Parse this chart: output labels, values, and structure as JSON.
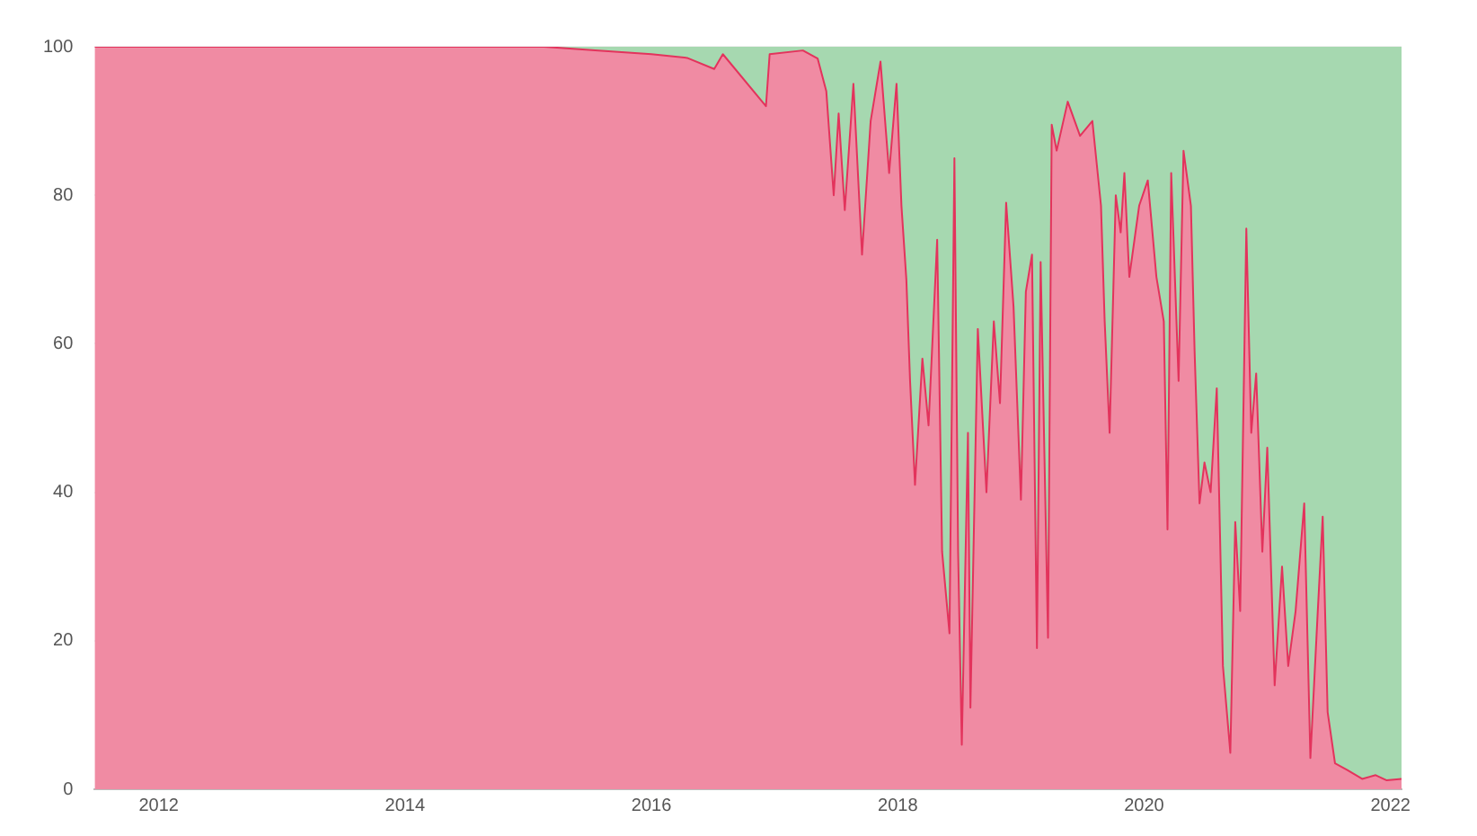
{
  "chart_data": {
    "type": "area",
    "stacked": true,
    "grid": "y",
    "legend": false,
    "x": [
      2011.48,
      2015.13,
      2015.57,
      2016.0,
      2016.29,
      2016.51,
      2016.58,
      2016.93,
      2016.96,
      2017.23,
      2017.35,
      2017.42,
      2017.48,
      2017.52,
      2017.57,
      2017.64,
      2017.71,
      2017.78,
      2017.86,
      2017.93,
      2017.99,
      2018.03,
      2018.07,
      2018.1,
      2018.14,
      2018.2,
      2018.25,
      2018.32,
      2018.36,
      2018.42,
      2018.46,
      2018.49,
      2018.52,
      2018.57,
      2018.59,
      2018.65,
      2018.72,
      2018.78,
      2018.83,
      2018.88,
      2018.94,
      2019.0,
      2019.04,
      2019.09,
      2019.13,
      2019.16,
      2019.22,
      2019.25,
      2019.29,
      2019.38,
      2019.48,
      2019.58,
      2019.65,
      2019.68,
      2019.72,
      2019.77,
      2019.81,
      2019.84,
      2019.88,
      2019.96,
      2020.03,
      2020.1,
      2020.16,
      2020.19,
      2020.22,
      2020.28,
      2020.32,
      2020.38,
      2020.41,
      2020.45,
      2020.49,
      2020.54,
      2020.59,
      2020.64,
      2020.7,
      2020.74,
      2020.78,
      2020.83,
      2020.87,
      2020.91,
      2020.96,
      2021.0,
      2021.06,
      2021.12,
      2021.17,
      2021.23,
      2021.3,
      2021.35,
      2021.41,
      2021.45,
      2021.49,
      2021.55,
      2021.65,
      2021.77,
      2021.88,
      2021.97,
      2022.09
    ],
    "series": [
      {
        "color": "#f08ba3",
        "values": [
          100,
          100,
          99.5,
          99,
          98.5,
          97,
          99,
          92,
          99,
          99.5,
          98.4,
          94,
          80,
          91,
          78,
          95,
          72,
          90,
          98,
          83,
          95,
          78.6,
          68.6,
          55,
          41,
          58,
          49,
          74,
          32,
          21,
          85,
          32,
          6,
          48,
          11,
          62,
          40,
          63,
          52,
          79,
          65,
          39,
          67,
          72,
          19,
          71,
          20.4,
          89.5,
          86,
          92.6,
          88,
          90,
          78.6,
          63,
          48,
          80,
          75,
          83,
          69,
          78.6,
          82,
          69,
          63,
          35,
          83,
          55,
          86,
          78.6,
          59,
          38.5,
          44,
          40,
          54,
          16.6,
          4.9,
          36,
          24,
          75.5,
          48,
          56,
          32,
          46,
          14,
          30,
          16.6,
          24,
          38.5,
          4.2,
          24,
          36.7,
          10.4,
          3.5,
          2.6,
          1.4,
          1.9,
          1.2,
          1.4
        ]
      },
      {
        "color": "#a6d8b0",
        "values": [
          0,
          0,
          0.5,
          1,
          1.5,
          3,
          1,
          8,
          1,
          0.5,
          1.6,
          6,
          20,
          9,
          22,
          5,
          28,
          10,
          2,
          17,
          5,
          21.4,
          31.4,
          45,
          59,
          42,
          51,
          26,
          68,
          79,
          15,
          68,
          94,
          52,
          89,
          38,
          60,
          37,
          48,
          21,
          35,
          61,
          33,
          28,
          81,
          29,
          79.6,
          10.5,
          14,
          7.4,
          12,
          10,
          21.4,
          37,
          52,
          20,
          25,
          17,
          31,
          21.4,
          18,
          31,
          37,
          65,
          17,
          45,
          14,
          21.4,
          41,
          61.5,
          56,
          60,
          46,
          83.4,
          95.1,
          64,
          76,
          24.5,
          52,
          44,
          68,
          54,
          86,
          70,
          83.4,
          76,
          61.5,
          95.8,
          76,
          63.3,
          89.6,
          96.5,
          97.4,
          98.6,
          98.1,
          98.8,
          98.6
        ]
      }
    ],
    "xlim": [
      2011.48,
      2022.09
    ],
    "xticks": [
      2012,
      2014,
      2016,
      2018,
      2020,
      2022
    ],
    "ylim": [
      0,
      100
    ],
    "yticks": [
      0,
      20,
      40,
      60,
      80,
      100
    ]
  }
}
